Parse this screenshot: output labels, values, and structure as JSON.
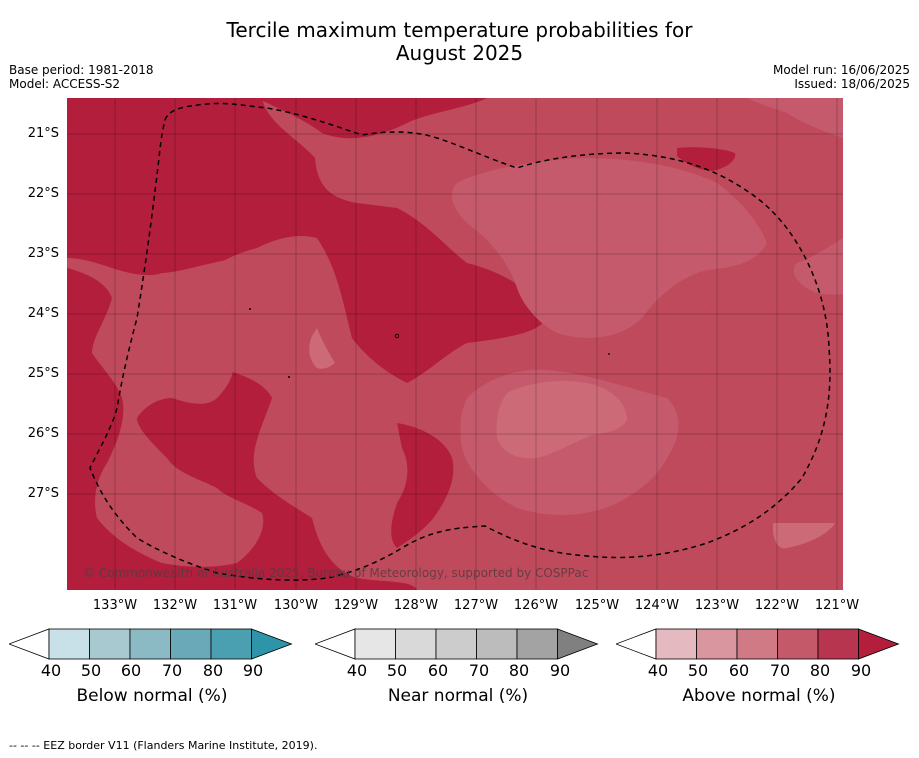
{
  "title": {
    "line1": "Tercile maximum temperature probabilities for",
    "line2": "August 2025"
  },
  "meta_left": {
    "base_period": "Base period: 1981-2018",
    "model": "Model: ACCESS-S2"
  },
  "meta_right": {
    "model_run": "Model run: 16/06/2025",
    "issued": "Issued: 18/06/2025"
  },
  "map": {
    "latitude_labels": [
      "21°S",
      "22°S",
      "23°S",
      "24°S",
      "25°S",
      "26°S",
      "27°S"
    ],
    "longitude_labels": [
      "133°W",
      "132°W",
      "131°W",
      "130°W",
      "129°W",
      "128°W",
      "127°W",
      "126°W",
      "125°W",
      "124°W",
      "123°W",
      "122°W",
      "121°W"
    ],
    "copyright": "© Commonwealth of Australia 2025, Bureau of Meteorology, supported by COSPPac",
    "colors": {
      "band_60_70": "#cc6a78",
      "band_70_80": "#bf4a5c",
      "band_80_90": "#b21e3c",
      "border": "#000000"
    }
  },
  "colorbars": {
    "below": {
      "title": "Below normal (%)",
      "ticks": [
        "40",
        "50",
        "60",
        "70",
        "80",
        "90"
      ],
      "colors": [
        "#ffffff",
        "#c8e1e8",
        "#a8c9d0",
        "#8bbac5",
        "#6aaab8",
        "#4a9fb0",
        "#2e94aa"
      ]
    },
    "near": {
      "title": "Near normal (%)",
      "ticks": [
        "40",
        "50",
        "60",
        "70",
        "80",
        "90"
      ],
      "colors": [
        "#ffffff",
        "#e6e6e6",
        "#d9d9d9",
        "#cccccc",
        "#bcbcbc",
        "#a3a3a3",
        "#808080"
      ]
    },
    "above": {
      "title": "Above normal (%)",
      "ticks": [
        "40",
        "50",
        "60",
        "70",
        "80",
        "90"
      ],
      "colors": [
        "#ffffff",
        "#e5b9c0",
        "#d9969f",
        "#cf7a85",
        "#c4596a",
        "#b8354f",
        "#b21e3c"
      ]
    }
  },
  "footer": "--  --  -- EEZ border V11 (Flanders Marine Institute, 2019)."
}
